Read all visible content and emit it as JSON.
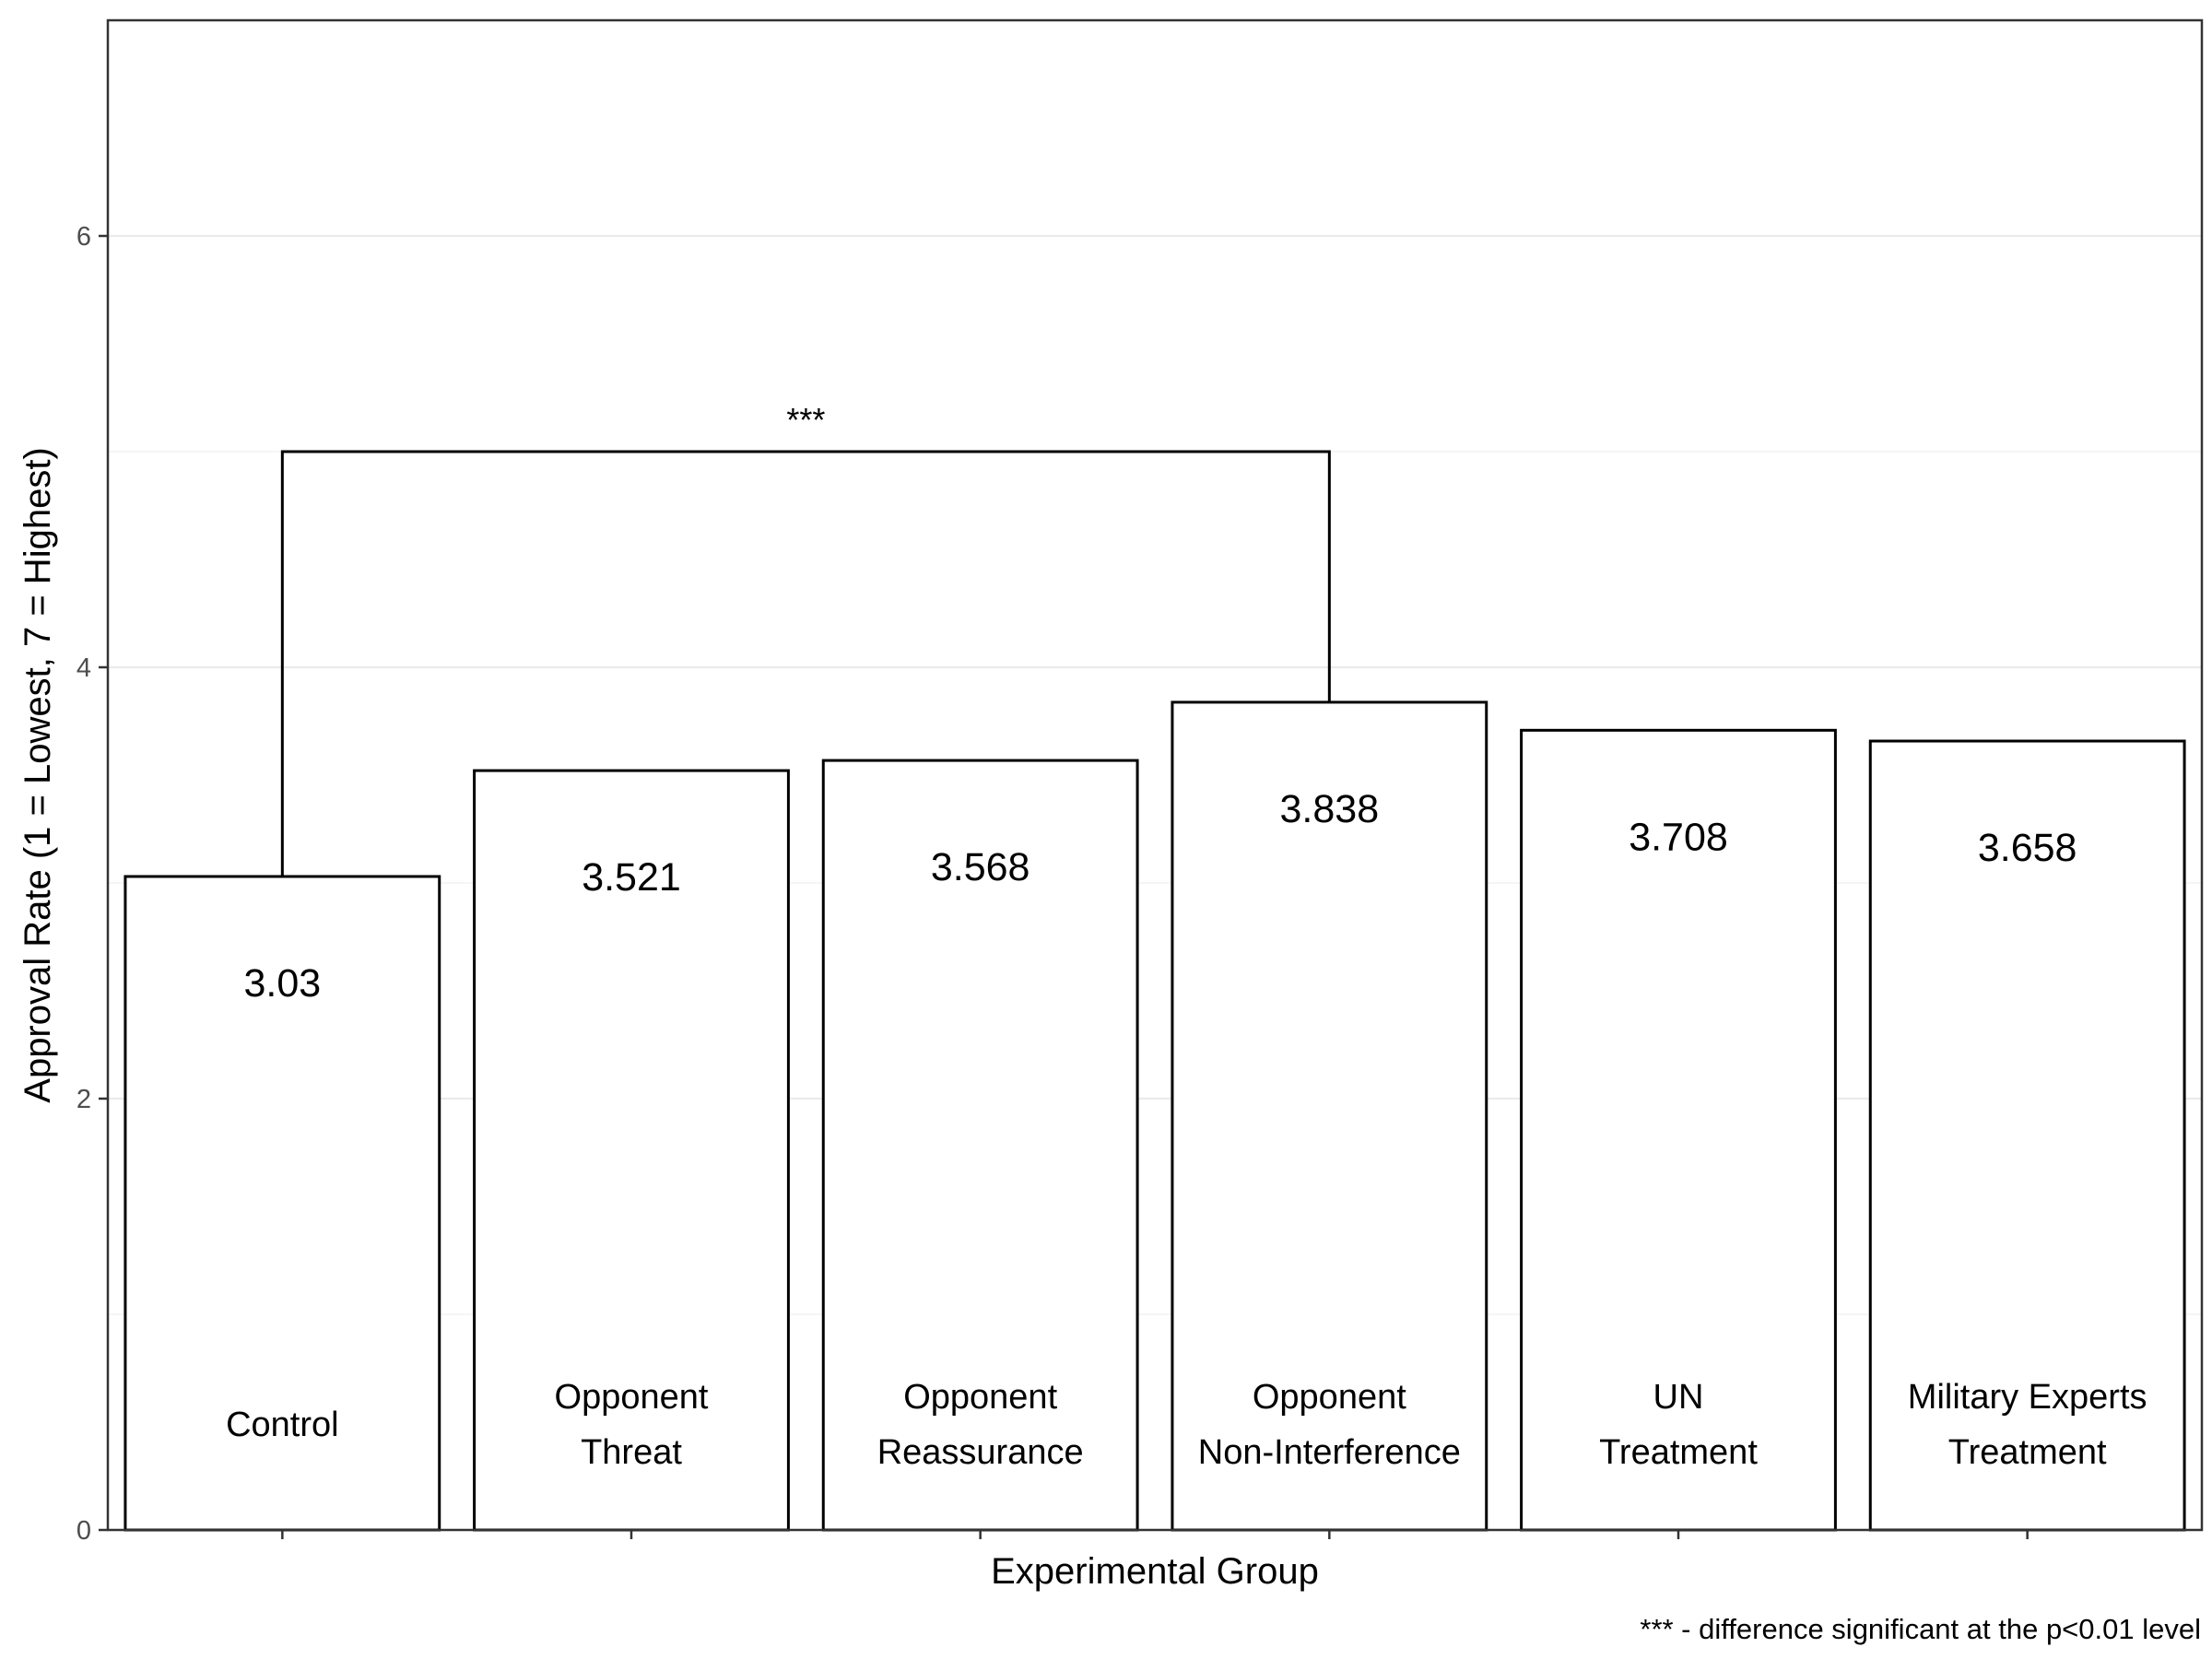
{
  "chart_data": {
    "type": "bar",
    "xlabel": "Experimental Group",
    "ylabel": "Approval Rate (1 = Lowest, 7 = Highest)",
    "ylim": [
      0,
      7
    ],
    "yticks": [
      0,
      2,
      4,
      6
    ],
    "grid": true,
    "categories": [
      [
        "Control"
      ],
      [
        "Opponent",
        "Threat"
      ],
      [
        "Opponent",
        "Reassurance"
      ],
      [
        "Opponent",
        "Non-Interference"
      ],
      [
        "UN",
        "Treatment"
      ],
      [
        "Military Experts",
        "Treatment"
      ]
    ],
    "values": [
      3.03,
      3.521,
      3.568,
      3.838,
      3.708,
      3.658
    ],
    "value_labels": [
      "3.03",
      "3.521",
      "3.568",
      "3.838",
      "3.708",
      "3.658"
    ],
    "annotation": {
      "text": "***",
      "from_index": 0,
      "to_index": 3,
      "bracket_y": 5
    },
    "caption": "*** - difference significant at the p<0.01 level",
    "colors": {
      "bar_fill": "#ffffff",
      "bar_stroke": "#000000",
      "grid": "#ebebeb",
      "panel_border": "#333333"
    }
  }
}
